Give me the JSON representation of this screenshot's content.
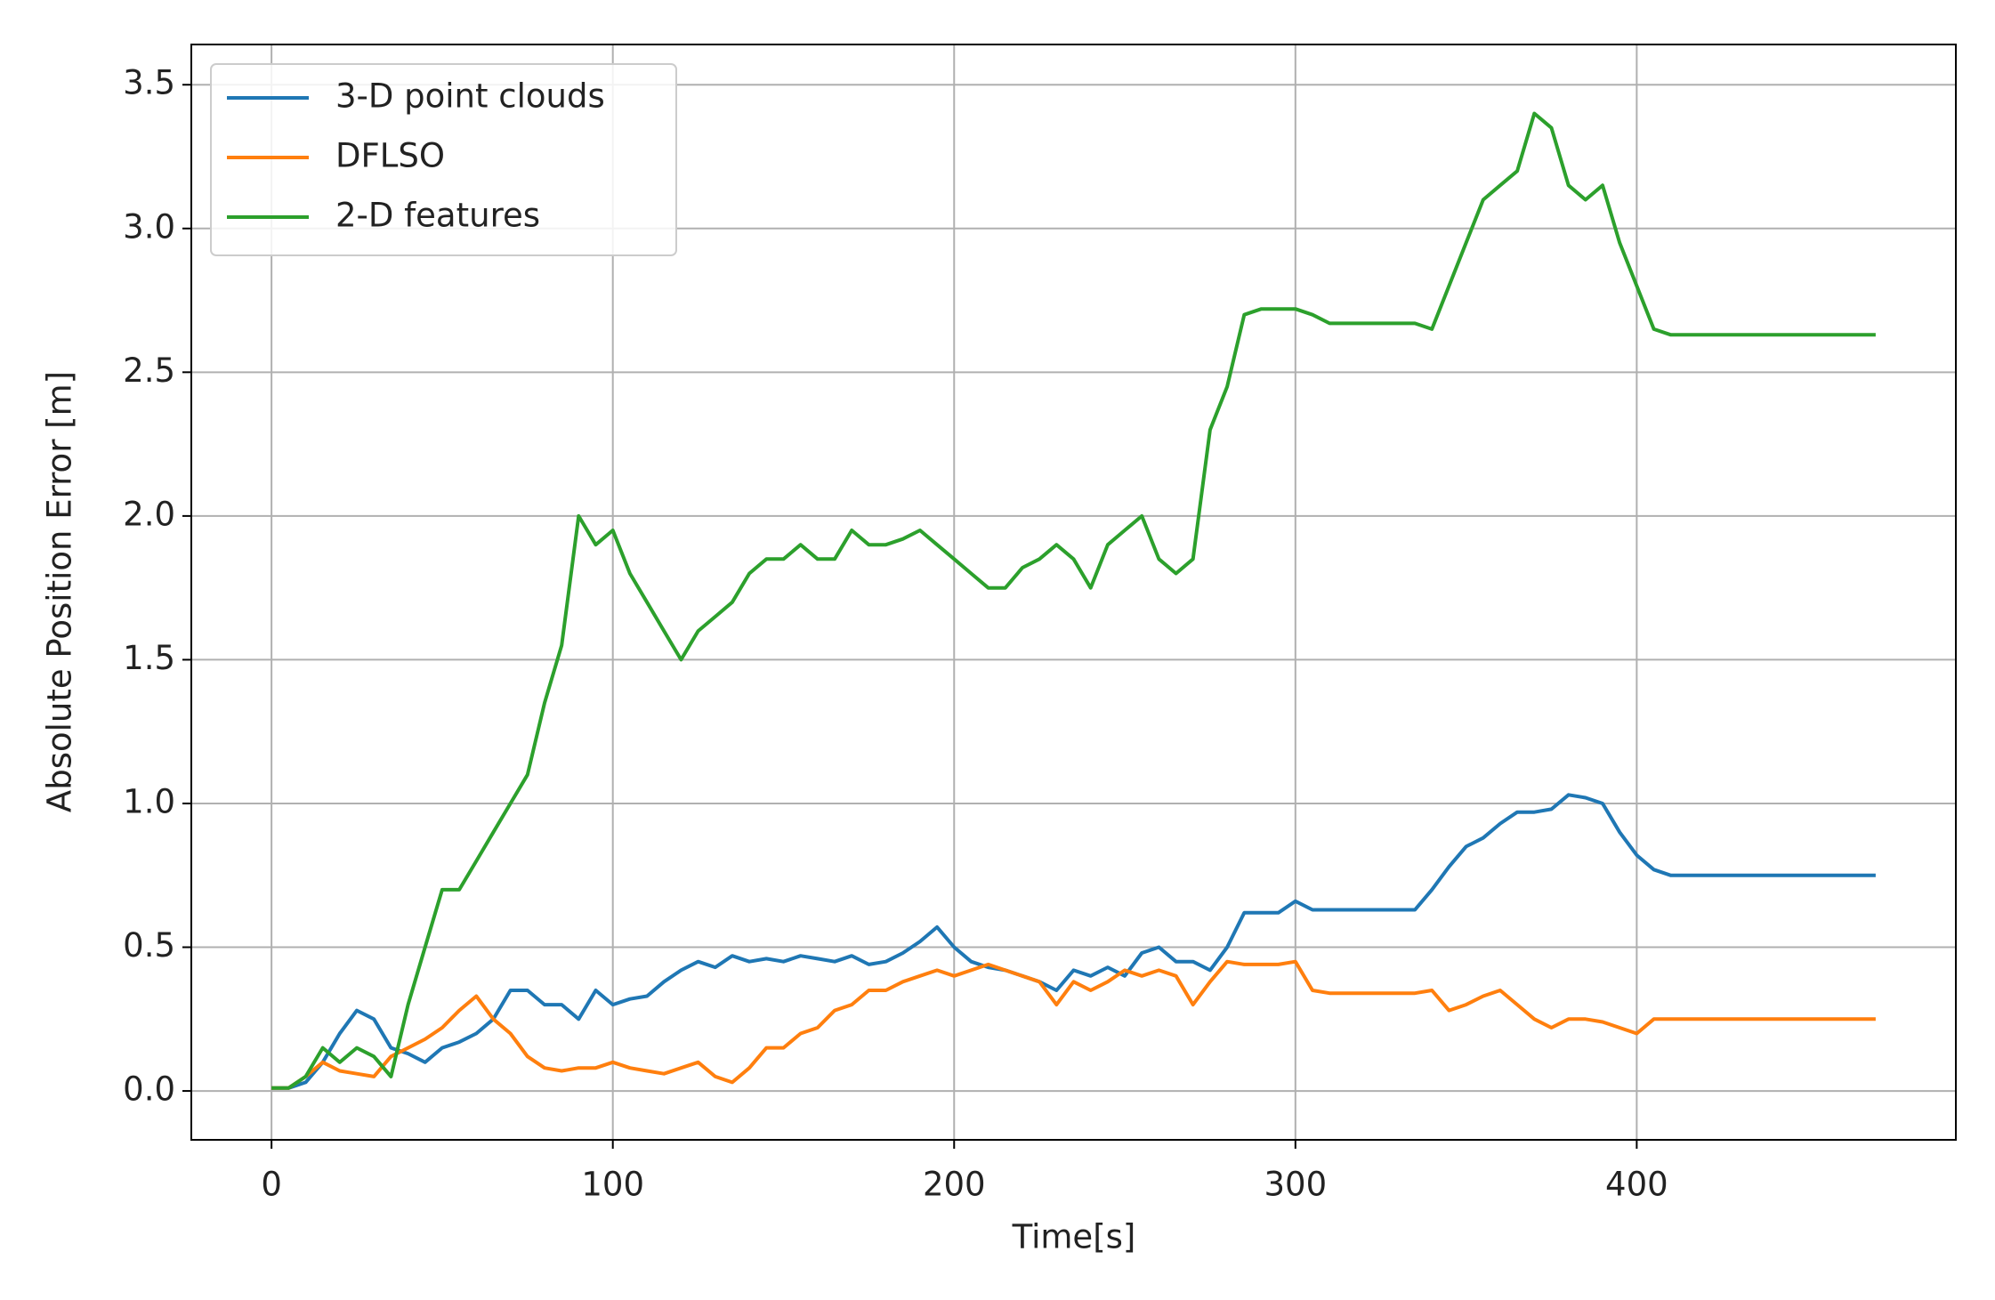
{
  "chart_data": {
    "type": "line",
    "xlabel": "Time[s]",
    "ylabel": "Absolute Position Error [m]",
    "x": [
      0,
      5,
      10,
      15,
      20,
      25,
      30,
      35,
      40,
      45,
      50,
      55,
      60,
      65,
      70,
      75,
      80,
      85,
      90,
      95,
      100,
      105,
      110,
      115,
      120,
      125,
      130,
      135,
      140,
      145,
      150,
      155,
      160,
      165,
      170,
      175,
      180,
      185,
      190,
      195,
      200,
      205,
      210,
      215,
      220,
      225,
      230,
      235,
      240,
      245,
      250,
      255,
      260,
      265,
      270,
      275,
      280,
      285,
      290,
      295,
      300,
      305,
      310,
      315,
      320,
      325,
      330,
      335,
      340,
      345,
      350,
      355,
      360,
      365,
      370,
      375,
      380,
      385,
      390,
      395,
      400,
      405,
      410,
      415,
      420,
      425,
      430,
      435,
      440,
      445,
      450,
      455,
      460,
      465,
      470
    ],
    "series": [
      {
        "name": "3-D point clouds",
        "color": "#1f77b4",
        "values": [
          0.01,
          0.01,
          0.03,
          0.1,
          0.2,
          0.28,
          0.25,
          0.15,
          0.13,
          0.1,
          0.15,
          0.17,
          0.2,
          0.25,
          0.35,
          0.35,
          0.3,
          0.3,
          0.25,
          0.35,
          0.3,
          0.32,
          0.33,
          0.38,
          0.42,
          0.45,
          0.43,
          0.47,
          0.45,
          0.46,
          0.45,
          0.47,
          0.46,
          0.45,
          0.47,
          0.44,
          0.45,
          0.48,
          0.52,
          0.57,
          0.5,
          0.45,
          0.43,
          0.42,
          0.4,
          0.38,
          0.35,
          0.42,
          0.4,
          0.43,
          0.4,
          0.48,
          0.5,
          0.45,
          0.45,
          0.42,
          0.5,
          0.62,
          0.62,
          0.62,
          0.66,
          0.63,
          0.63,
          0.63,
          0.63,
          0.63,
          0.63,
          0.63,
          0.7,
          0.78,
          0.85,
          0.88,
          0.93,
          0.97,
          0.97,
          0.98,
          1.03,
          1.02,
          1.0,
          0.9,
          0.82,
          0.77,
          0.75,
          0.75,
          0.75,
          0.75,
          0.75,
          0.75,
          0.75,
          0.75,
          0.75,
          0.75,
          0.75,
          0.75,
          0.75
        ]
      },
      {
        "name": "DFLSO",
        "color": "#ff7f0e",
        "values": [
          0.01,
          0.01,
          0.05,
          0.1,
          0.07,
          0.06,
          0.05,
          0.12,
          0.15,
          0.18,
          0.22,
          0.28,
          0.33,
          0.25,
          0.2,
          0.12,
          0.08,
          0.07,
          0.08,
          0.08,
          0.1,
          0.08,
          0.07,
          0.06,
          0.08,
          0.1,
          0.05,
          0.03,
          0.08,
          0.15,
          0.15,
          0.2,
          0.22,
          0.28,
          0.3,
          0.35,
          0.35,
          0.38,
          0.4,
          0.42,
          0.4,
          0.42,
          0.44,
          0.42,
          0.4,
          0.38,
          0.3,
          0.38,
          0.35,
          0.38,
          0.42,
          0.4,
          0.42,
          0.4,
          0.3,
          0.38,
          0.45,
          0.44,
          0.44,
          0.44,
          0.45,
          0.35,
          0.34,
          0.34,
          0.34,
          0.34,
          0.34,
          0.34,
          0.35,
          0.28,
          0.3,
          0.33,
          0.35,
          0.3,
          0.25,
          0.22,
          0.25,
          0.25,
          0.24,
          0.22,
          0.2,
          0.25,
          0.25,
          0.25,
          0.25,
          0.25,
          0.25,
          0.25,
          0.25,
          0.25,
          0.25,
          0.25,
          0.25,
          0.25,
          0.25
        ]
      },
      {
        "name": "2-D features",
        "color": "#2ca02c",
        "values": [
          0.01,
          0.01,
          0.05,
          0.15,
          0.1,
          0.15,
          0.12,
          0.05,
          0.3,
          0.5,
          0.7,
          0.7,
          0.8,
          0.9,
          1.0,
          1.1,
          1.35,
          1.55,
          2.0,
          1.9,
          1.95,
          1.8,
          1.7,
          1.6,
          1.5,
          1.6,
          1.65,
          1.7,
          1.8,
          1.85,
          1.85,
          1.9,
          1.85,
          1.85,
          1.95,
          1.9,
          1.9,
          1.92,
          1.95,
          1.9,
          1.85,
          1.8,
          1.75,
          1.75,
          1.82,
          1.85,
          1.9,
          1.85,
          1.75,
          1.9,
          1.95,
          2.0,
          1.85,
          1.8,
          1.85,
          2.3,
          2.45,
          2.7,
          2.72,
          2.72,
          2.72,
          2.7,
          2.67,
          2.67,
          2.67,
          2.67,
          2.67,
          2.67,
          2.65,
          2.8,
          2.95,
          3.1,
          3.15,
          3.2,
          3.4,
          3.35,
          3.15,
          3.1,
          3.15,
          2.95,
          2.8,
          2.65,
          2.63,
          2.63,
          2.63,
          2.63,
          2.63,
          2.63,
          2.63,
          2.63,
          2.63,
          2.63,
          2.63,
          2.63,
          2.63
        ]
      }
    ],
    "xlim": [
      -23.5,
      493.5
    ],
    "xticks": [
      0,
      100,
      200,
      300,
      400
    ],
    "ylim": [
      -0.17,
      3.64
    ],
    "yticks": [
      {
        "value": 0,
        "label": "0.0"
      },
      0.5,
      {
        "value": 1,
        "label": "1.0"
      },
      1.5,
      {
        "value": 2,
        "label": "2.0"
      },
      2.5,
      {
        "value": 3,
        "label": "3.0"
      },
      3.5
    ],
    "grid": true,
    "legend": "upper left"
  }
}
